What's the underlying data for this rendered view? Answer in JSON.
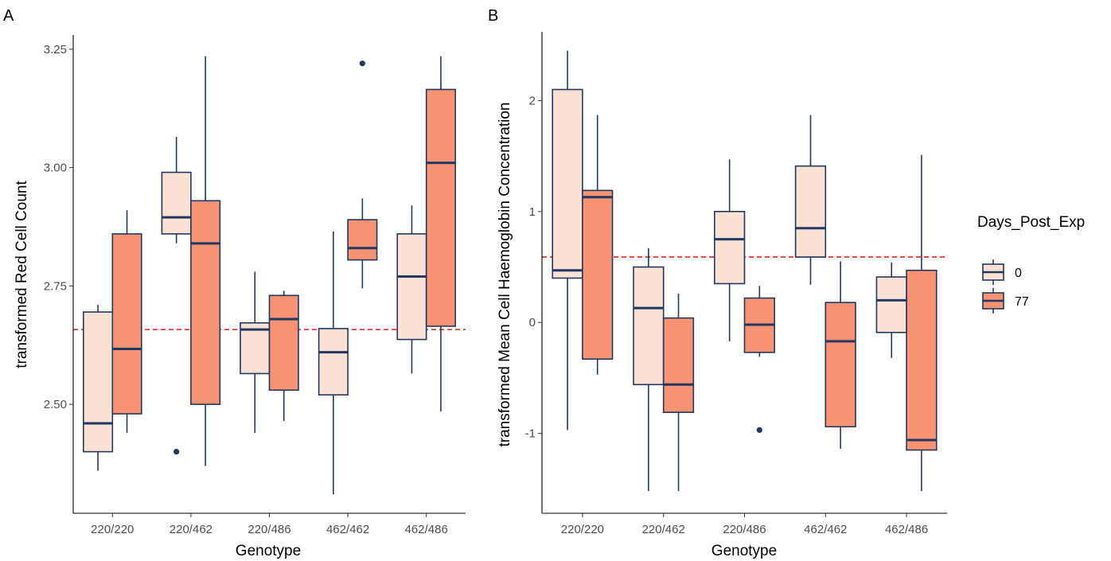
{
  "colors": {
    "box_outline": "#1f3864",
    "fill_day0": "#fbe0d4",
    "fill_day77": "#f79272",
    "reference_line": "#e31a1c",
    "axis": "#000000"
  },
  "legend": {
    "title": "Days_Post_Exp",
    "entries": [
      {
        "label": "0",
        "key": "fill_day0"
      },
      {
        "label": "77",
        "key": "fill_day77"
      }
    ]
  },
  "chart_data": [
    {
      "type": "boxplot",
      "panel_label": "A",
      "xlabel": "Genotype",
      "ylabel": "transformed Red Cell Count",
      "categories": [
        "220/220",
        "220/462",
        "220/486",
        "462/462",
        "462/486"
      ],
      "ylim": [
        2.27,
        3.28
      ],
      "yticks": [
        2.5,
        2.75,
        3.0,
        3.25
      ],
      "ytick_labels": [
        "2.50",
        "2.75",
        "3.00",
        "3.25"
      ],
      "reference_line": 2.658,
      "series": [
        {
          "name": "0",
          "boxes": [
            {
              "whisker_low": 2.36,
              "q1": 2.4,
              "median": 2.46,
              "q3": 2.695,
              "whisker_high": 2.71,
              "outliers": []
            },
            {
              "whisker_low": 2.84,
              "q1": 2.86,
              "median": 2.895,
              "q3": 2.99,
              "whisker_high": 3.065,
              "outliers": [
                2.4
              ]
            },
            {
              "whisker_low": 2.44,
              "q1": 2.565,
              "median": 2.658,
              "q3": 2.672,
              "whisker_high": 2.78,
              "outliers": []
            },
            {
              "whisker_low": 2.31,
              "q1": 2.52,
              "median": 2.61,
              "q3": 2.66,
              "whisker_high": 2.865,
              "outliers": []
            },
            {
              "whisker_low": 2.565,
              "q1": 2.637,
              "median": 2.77,
              "q3": 2.86,
              "whisker_high": 2.92,
              "outliers": []
            }
          ]
        },
        {
          "name": "77",
          "boxes": [
            {
              "whisker_low": 2.44,
              "q1": 2.48,
              "median": 2.617,
              "q3": 2.86,
              "whisker_high": 2.91,
              "outliers": []
            },
            {
              "whisker_low": 2.37,
              "q1": 2.5,
              "median": 2.84,
              "q3": 2.93,
              "whisker_high": 3.235,
              "outliers": []
            },
            {
              "whisker_low": 2.465,
              "q1": 2.53,
              "median": 2.68,
              "q3": 2.73,
              "whisker_high": 2.74,
              "outliers": []
            },
            {
              "whisker_low": 2.745,
              "q1": 2.805,
              "median": 2.83,
              "q3": 2.89,
              "whisker_high": 2.935,
              "outliers": [
                3.22
              ]
            },
            {
              "whisker_low": 2.485,
              "q1": 2.665,
              "median": 3.01,
              "q3": 3.165,
              "whisker_high": 3.235,
              "outliers": []
            }
          ]
        }
      ]
    },
    {
      "type": "boxplot",
      "panel_label": "B",
      "xlabel": "Genotype",
      "ylabel": "transformed Mean Cell Haemoglobin Concentration",
      "categories": [
        "220/220",
        "220/462",
        "220/486",
        "462/462",
        "462/486"
      ],
      "ylim": [
        -1.72,
        2.62
      ],
      "yticks": [
        -1,
        0,
        1,
        2
      ],
      "ytick_labels": [
        "-1",
        "0",
        "1",
        "2"
      ],
      "reference_line": 0.59,
      "series": [
        {
          "name": "0",
          "boxes": [
            {
              "whisker_low": -0.97,
              "q1": 0.4,
              "median": 0.47,
              "q3": 2.1,
              "whisker_high": 2.45,
              "outliers": []
            },
            {
              "whisker_low": -1.52,
              "q1": -0.56,
              "median": 0.13,
              "q3": 0.5,
              "whisker_high": 0.67,
              "outliers": []
            },
            {
              "whisker_low": -0.17,
              "q1": 0.35,
              "median": 0.75,
              "q3": 1.0,
              "whisker_high": 1.47,
              "outliers": []
            },
            {
              "whisker_low": 0.34,
              "q1": 0.59,
              "median": 0.85,
              "q3": 1.41,
              "whisker_high": 1.87,
              "outliers": []
            },
            {
              "whisker_low": -0.32,
              "q1": -0.09,
              "median": 0.2,
              "q3": 0.41,
              "whisker_high": 0.54,
              "outliers": []
            }
          ]
        },
        {
          "name": "77",
          "boxes": [
            {
              "whisker_low": -0.47,
              "q1": -0.33,
              "median": 1.13,
              "q3": 1.19,
              "whisker_high": 1.87,
              "outliers": []
            },
            {
              "whisker_low": -1.52,
              "q1": -0.81,
              "median": -0.56,
              "q3": 0.04,
              "whisker_high": 0.26,
              "outliers": []
            },
            {
              "whisker_low": -0.31,
              "q1": -0.27,
              "median": -0.02,
              "q3": 0.22,
              "whisker_high": 0.33,
              "outliers": [
                -0.97
              ]
            },
            {
              "whisker_low": -1.14,
              "q1": -0.94,
              "median": -0.17,
              "q3": 0.18,
              "whisker_high": 0.55,
              "outliers": []
            },
            {
              "whisker_low": -1.52,
              "q1": -1.15,
              "median": -1.06,
              "q3": 0.47,
              "whisker_high": 1.51,
              "outliers": []
            }
          ]
        }
      ]
    }
  ]
}
